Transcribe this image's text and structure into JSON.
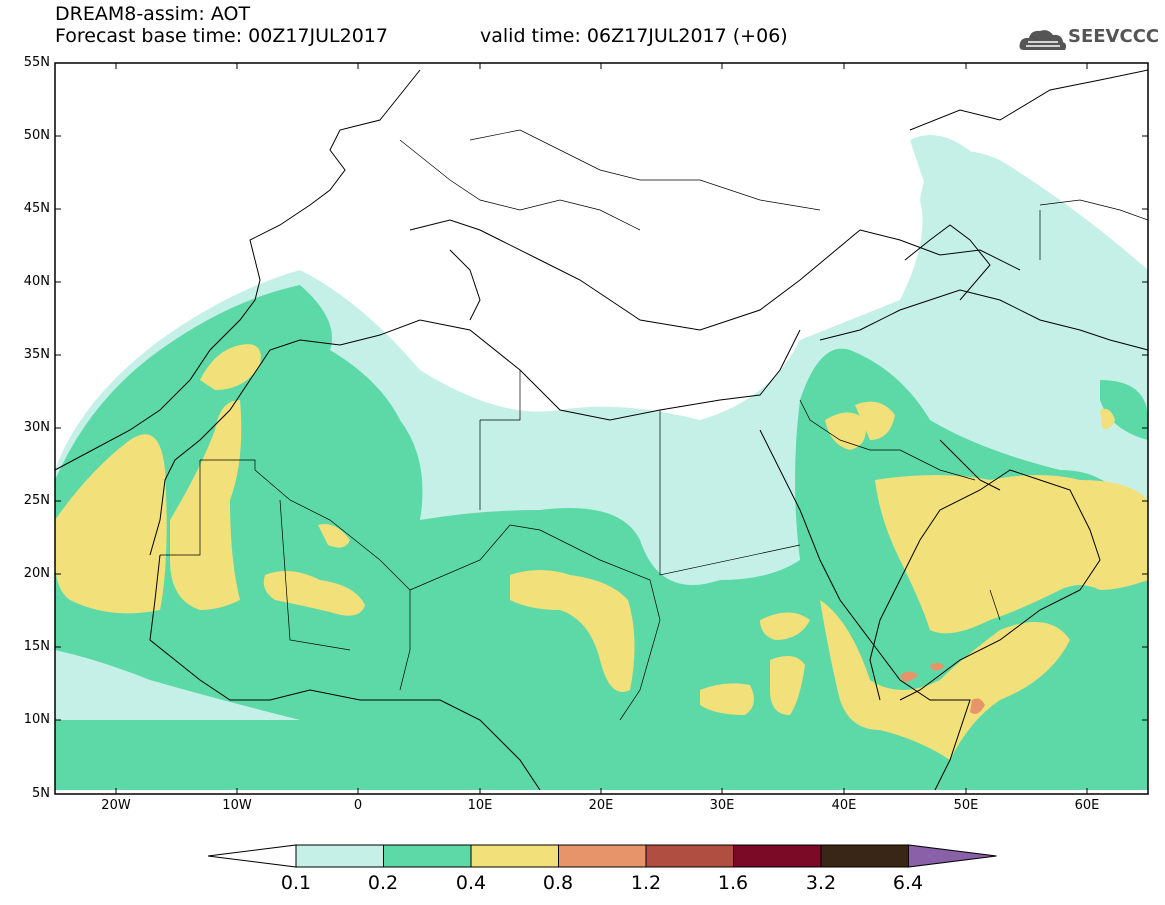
{
  "header": {
    "title": "DREAM8-assim: AOT",
    "forecast_base": "Forecast base time: 00Z17JUL2017",
    "valid_time": "valid time: 06Z17JUL2017 (+06)",
    "logo_text": "SEEVCCC"
  },
  "map": {
    "lat_labels": [
      "55N",
      "50N",
      "45N",
      "40N",
      "35N",
      "30N",
      "25N",
      "20N",
      "15N",
      "10N",
      "5N"
    ],
    "lon_labels": [
      "20W",
      "10W",
      "0",
      "10E",
      "20E",
      "30E",
      "40E",
      "50E",
      "60E"
    ],
    "lat_range": [
      5,
      55
    ],
    "lon_range": [
      -25,
      65
    ]
  },
  "colorbar": {
    "labels": [
      "0.1",
      "0.2",
      "0.4",
      "0.8",
      "1.2",
      "1.6",
      "3.2",
      "6.4"
    ],
    "colors": [
      "#ffffff",
      "#c4f0e8",
      "#5dd9a8",
      "#f2e07a",
      "#e8946a",
      "#b04e42",
      "#7a0a26",
      "#3a2616",
      "#8a60a8"
    ]
  },
  "colors": {
    "level1": "#c4f0e8",
    "level2": "#5dd9a8",
    "level3": "#f2e07a",
    "level4": "#e8946a"
  }
}
